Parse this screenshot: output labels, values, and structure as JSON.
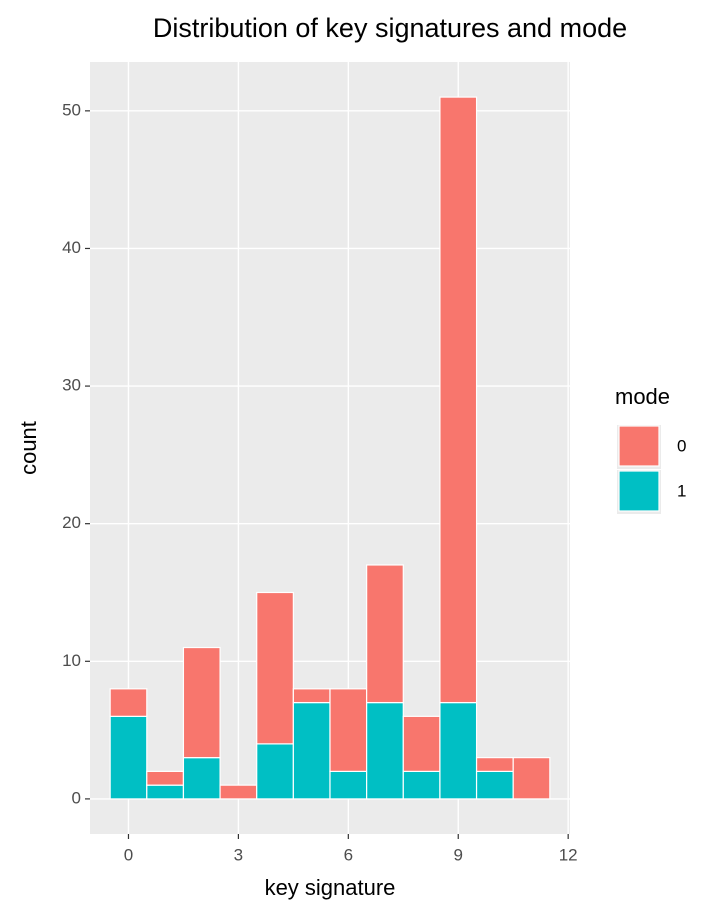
{
  "chart_data": {
    "type": "histogram",
    "title": "Distribution of key signatures and mode",
    "x_label": "key signature",
    "y_label": "count",
    "legend_title": "mode",
    "legend_position": "right",
    "stacked": true,
    "bins": [
      -0.5,
      0.5,
      1.5,
      2.5,
      3.5,
      4.5,
      5.5,
      6.5,
      7.5,
      8.5,
      9.5,
      10.5,
      11.5
    ],
    "series": [
      {
        "name": "0",
        "color": "#f8766d",
        "values": [
          2,
          1,
          8,
          1,
          11,
          1,
          6,
          10,
          4,
          44,
          1,
          3
        ]
      },
      {
        "name": "1",
        "color": "#00bfc4",
        "values": [
          6,
          1,
          3,
          0,
          4,
          7,
          2,
          7,
          2,
          7,
          2,
          0
        ]
      }
    ],
    "xlim": [
      -1.05,
      12.05
    ],
    "xticks": [
      0,
      3,
      6,
      9,
      12
    ],
    "ylim": [
      -2.55,
      53.55
    ],
    "yticks": [
      0,
      10,
      20,
      30,
      40,
      50
    ],
    "grid": true
  }
}
